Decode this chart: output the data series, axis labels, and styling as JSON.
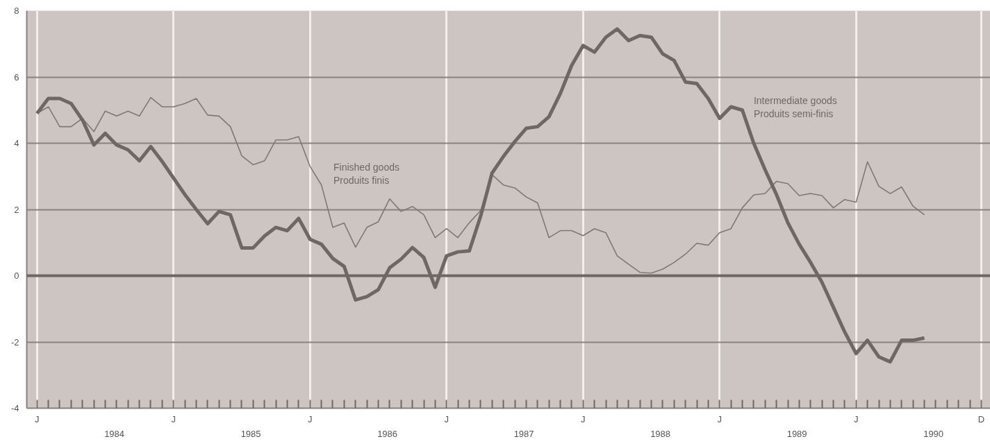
{
  "chart_data": {
    "type": "line",
    "categories": [
      "J",
      null,
      null,
      null,
      null,
      null,
      null,
      null,
      null,
      null,
      null,
      null,
      "J",
      null,
      null,
      null,
      null,
      null,
      null,
      null,
      null,
      null,
      null,
      null,
      "J",
      null,
      null,
      null,
      null,
      null,
      null,
      null,
      null,
      null,
      null,
      null,
      "J",
      null,
      null,
      null,
      null,
      null,
      null,
      null,
      null,
      null,
      null,
      null,
      "J",
      null,
      null,
      null,
      null,
      null,
      null,
      null,
      null,
      null,
      null,
      null,
      "J",
      null,
      null,
      null,
      null,
      null,
      null,
      null,
      null,
      null,
      null,
      null,
      "J",
      null,
      null,
      null,
      null,
      null,
      null,
      null,
      null,
      null,
      null,
      "D"
    ],
    "series": [
      {
        "name": "Finished goods\nProduits finis",
        "color": "#7f7873",
        "values": [
          4.9,
          5.1,
          4.5,
          4.5,
          4.75,
          4.35,
          4.97,
          4.82,
          4.97,
          4.82,
          5.38,
          5.1,
          5.1,
          5.2,
          5.35,
          4.85,
          4.82,
          4.5,
          3.62,
          3.35,
          3.47,
          4.1,
          4.1,
          4.2,
          3.3,
          2.74,
          1.46,
          1.59,
          0.86,
          1.46,
          1.63,
          2.32,
          1.94,
          2.09,
          1.84,
          1.15,
          1.42,
          1.15,
          1.6,
          1.97,
          3.05,
          2.74,
          2.65,
          2.38,
          2.2,
          1.15,
          1.36,
          1.36,
          1.21,
          1.42,
          1.3,
          0.6,
          0.35,
          0.1,
          0.08,
          0.2,
          0.4,
          0.65,
          0.98,
          0.92,
          1.3,
          1.42,
          2.05,
          2.44,
          2.48,
          2.85,
          2.78,
          2.42,
          2.48,
          2.42,
          2.05,
          2.3,
          2.22,
          3.44,
          2.7,
          2.48,
          2.68,
          2.1,
          1.84,
          null,
          null,
          null,
          null,
          null
        ]
      },
      {
        "name": "Intermediate goods\nProduits semi-finis",
        "color": "#6e6864",
        "values": [
          4.9,
          5.35,
          5.35,
          5.2,
          4.7,
          3.95,
          4.3,
          3.95,
          3.8,
          3.47,
          3.9,
          3.45,
          2.95,
          2.45,
          2.0,
          1.57,
          1.94,
          1.84,
          0.84,
          0.84,
          1.2,
          1.46,
          1.36,
          1.73,
          1.1,
          0.95,
          0.52,
          0.28,
          -0.73,
          -0.63,
          -0.42,
          0.24,
          0.5,
          0.85,
          0.55,
          -0.35,
          0.6,
          0.72,
          0.75,
          1.8,
          3.1,
          3.6,
          4.05,
          4.45,
          4.5,
          4.8,
          5.5,
          6.35,
          6.95,
          6.75,
          7.2,
          7.45,
          7.1,
          7.25,
          7.2,
          6.7,
          6.5,
          5.85,
          5.8,
          5.35,
          4.75,
          5.1,
          5.0,
          4.0,
          3.2,
          2.45,
          1.6,
          0.95,
          0.4,
          -0.2,
          -0.95,
          -1.7,
          -2.35,
          -1.95,
          -2.45,
          -2.6,
          -1.95,
          -1.95,
          -1.88,
          null,
          null,
          null,
          null,
          null
        ]
      }
    ],
    "annotations": [
      "1984",
      "1985",
      "1986",
      "1987",
      "1988",
      "1989",
      "1990"
    ],
    "ylim": [
      -4,
      8
    ],
    "yticks": [
      -4,
      -2,
      0,
      2,
      4,
      6,
      8
    ],
    "grid": true,
    "ref_lines": [
      {
        "axis": "y",
        "value": 0,
        "color": "#6e6864"
      }
    ],
    "line_style": "solid"
  }
}
